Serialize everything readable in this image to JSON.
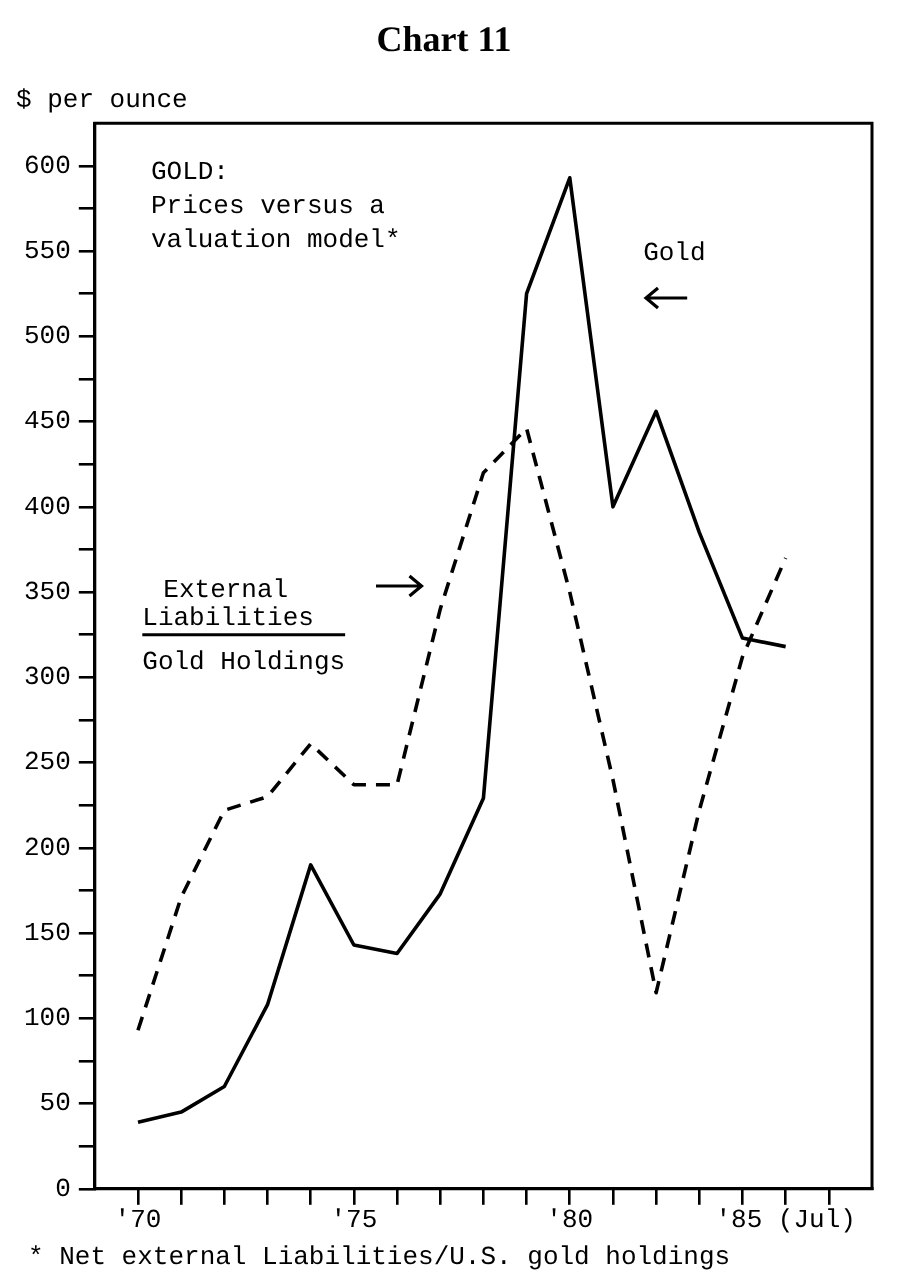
{
  "chart_data": {
    "type": "line",
    "title": "Chart 11",
    "ylabel": "$ per ounce",
    "x": [
      1970,
      1971,
      1972,
      1973,
      1974,
      1975,
      1976,
      1977,
      1978,
      1979,
      1980,
      1981,
      1982,
      1983,
      1984,
      1985
    ],
    "series": [
      {
        "color": "#000000",
        "line_style": "solid",
        "values": [
          39,
          45,
          60,
          108,
          190,
          143,
          138,
          173,
          229,
          525,
          593,
          400,
          456,
          385,
          323,
          318
        ]
      },
      {
        "color": "#000000",
        "line_style": "dashed",
        "values": [
          93,
          171,
          222,
          230,
          261,
          237,
          237,
          340,
          420,
          446,
          350,
          240,
          115,
          222,
          312,
          370
        ]
      }
    ],
    "xlim": [
      1969,
      1987
    ],
    "xticks": [
      {
        "value": 1970,
        "label": "'70"
      },
      {
        "value": 1971,
        "label": null
      },
      {
        "value": 1972,
        "label": null
      },
      {
        "value": 1973,
        "label": null
      },
      {
        "value": 1974,
        "label": null
      },
      {
        "value": 1975,
        "label": "'75"
      },
      {
        "value": 1976,
        "label": null
      },
      {
        "value": 1977,
        "label": null
      },
      {
        "value": 1978,
        "label": null
      },
      {
        "value": 1979,
        "label": null
      },
      {
        "value": 1980,
        "label": "'80"
      },
      {
        "value": 1981,
        "label": null
      },
      {
        "value": 1982,
        "label": null
      },
      {
        "value": 1983,
        "label": null
      },
      {
        "value": 1984,
        "label": null
      },
      {
        "value": 1985,
        "label": "'85 (Jul)"
      },
      {
        "value": 1986,
        "label": null
      }
    ],
    "ylim": [
      0,
      625
    ],
    "yticks": [
      0,
      {
        "value": 25,
        "label": null
      },
      50,
      {
        "value": 75,
        "label": null
      },
      100,
      {
        "value": 125,
        "label": null
      },
      150,
      {
        "value": 175,
        "label": null
      },
      200,
      {
        "value": 225,
        "label": null
      },
      250,
      {
        "value": 275,
        "label": null
      },
      300,
      {
        "value": 325,
        "label": null
      },
      350,
      {
        "value": 375,
        "label": null
      },
      400,
      {
        "value": 425,
        "label": null
      },
      450,
      {
        "value": 475,
        "label": null
      },
      500,
      {
        "value": 525,
        "label": null
      },
      550,
      {
        "value": 575,
        "label": null
      },
      600
    ],
    "annotations": [
      "GOLD:\nPrices versus a\nvaluation model*",
      "* Net external Liabilities/U.S. gold holdings",
      "Gold",
      "External Liabilities",
      "Gold Holdings"
    ],
    "grid": false,
    "legend": false,
    "marker": "none"
  }
}
